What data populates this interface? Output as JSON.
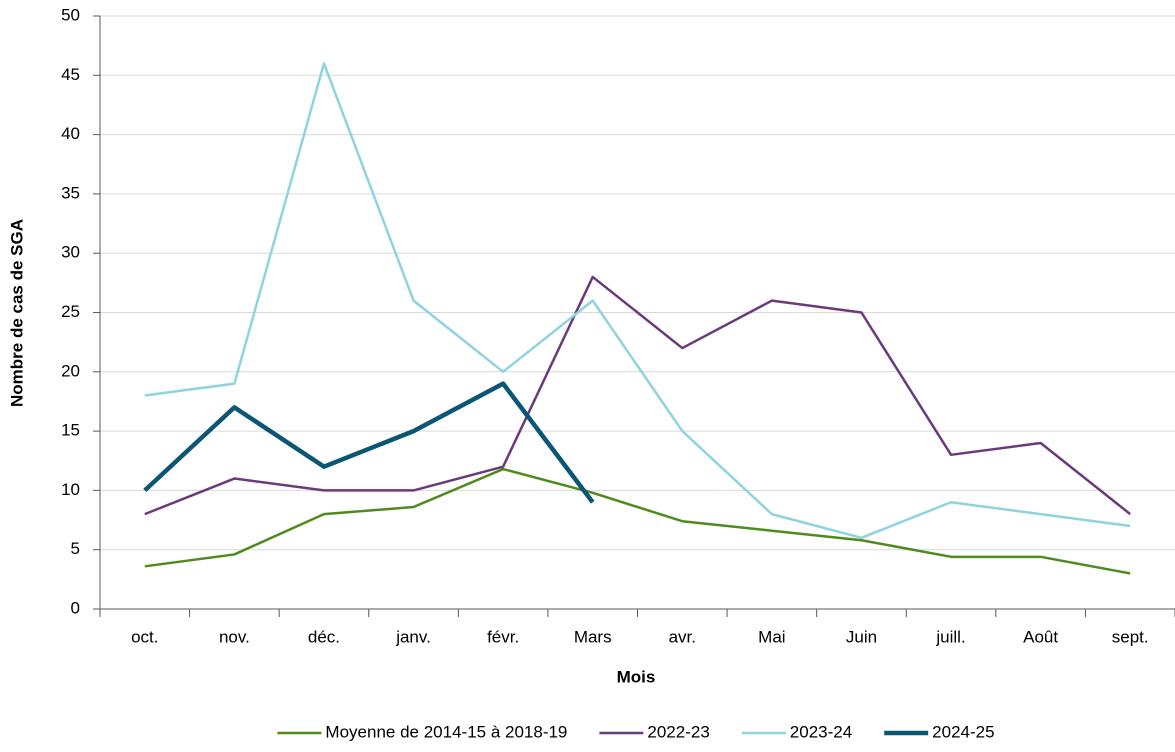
{
  "chart_data": {
    "type": "line",
    "x_label": "Mois",
    "y_label": "Nombre de cas de SGA",
    "categories": [
      "oct.",
      "nov.",
      "déc.",
      "janv.",
      "févr.",
      "Mars",
      "avr.",
      "Mai",
      "Juin",
      "juill.",
      "Août",
      "sept."
    ],
    "series": [
      {
        "name": "Moyenne de 2014-15 à 2018-19",
        "color": "#4e8a1c",
        "values": [
          3.6,
          4.6,
          8.0,
          8.6,
          11.8,
          9.8,
          7.4,
          6.6,
          5.8,
          4.4,
          4.4,
          3.0
        ]
      },
      {
        "name": "2022-23",
        "color": "#6b3a7a",
        "values": [
          8,
          11,
          10,
          10,
          12,
          28,
          22,
          26,
          25,
          13,
          14,
          8
        ]
      },
      {
        "name": "2023-24",
        "color": "#8fd3df",
        "values": [
          18,
          19,
          46,
          26,
          20,
          26,
          15,
          8,
          6,
          9,
          8,
          7
        ]
      },
      {
        "name": "2024-25",
        "color": "#0b5575",
        "values": [
          10,
          17,
          12,
          15,
          19,
          9,
          null,
          null,
          null,
          null,
          null,
          null
        ]
      }
    ],
    "ylim": [
      0,
      50
    ],
    "yticks": [
      0,
      5,
      10,
      15,
      20,
      25,
      30,
      35,
      40,
      45,
      50
    ],
    "grid": true,
    "legend": "bottom"
  }
}
